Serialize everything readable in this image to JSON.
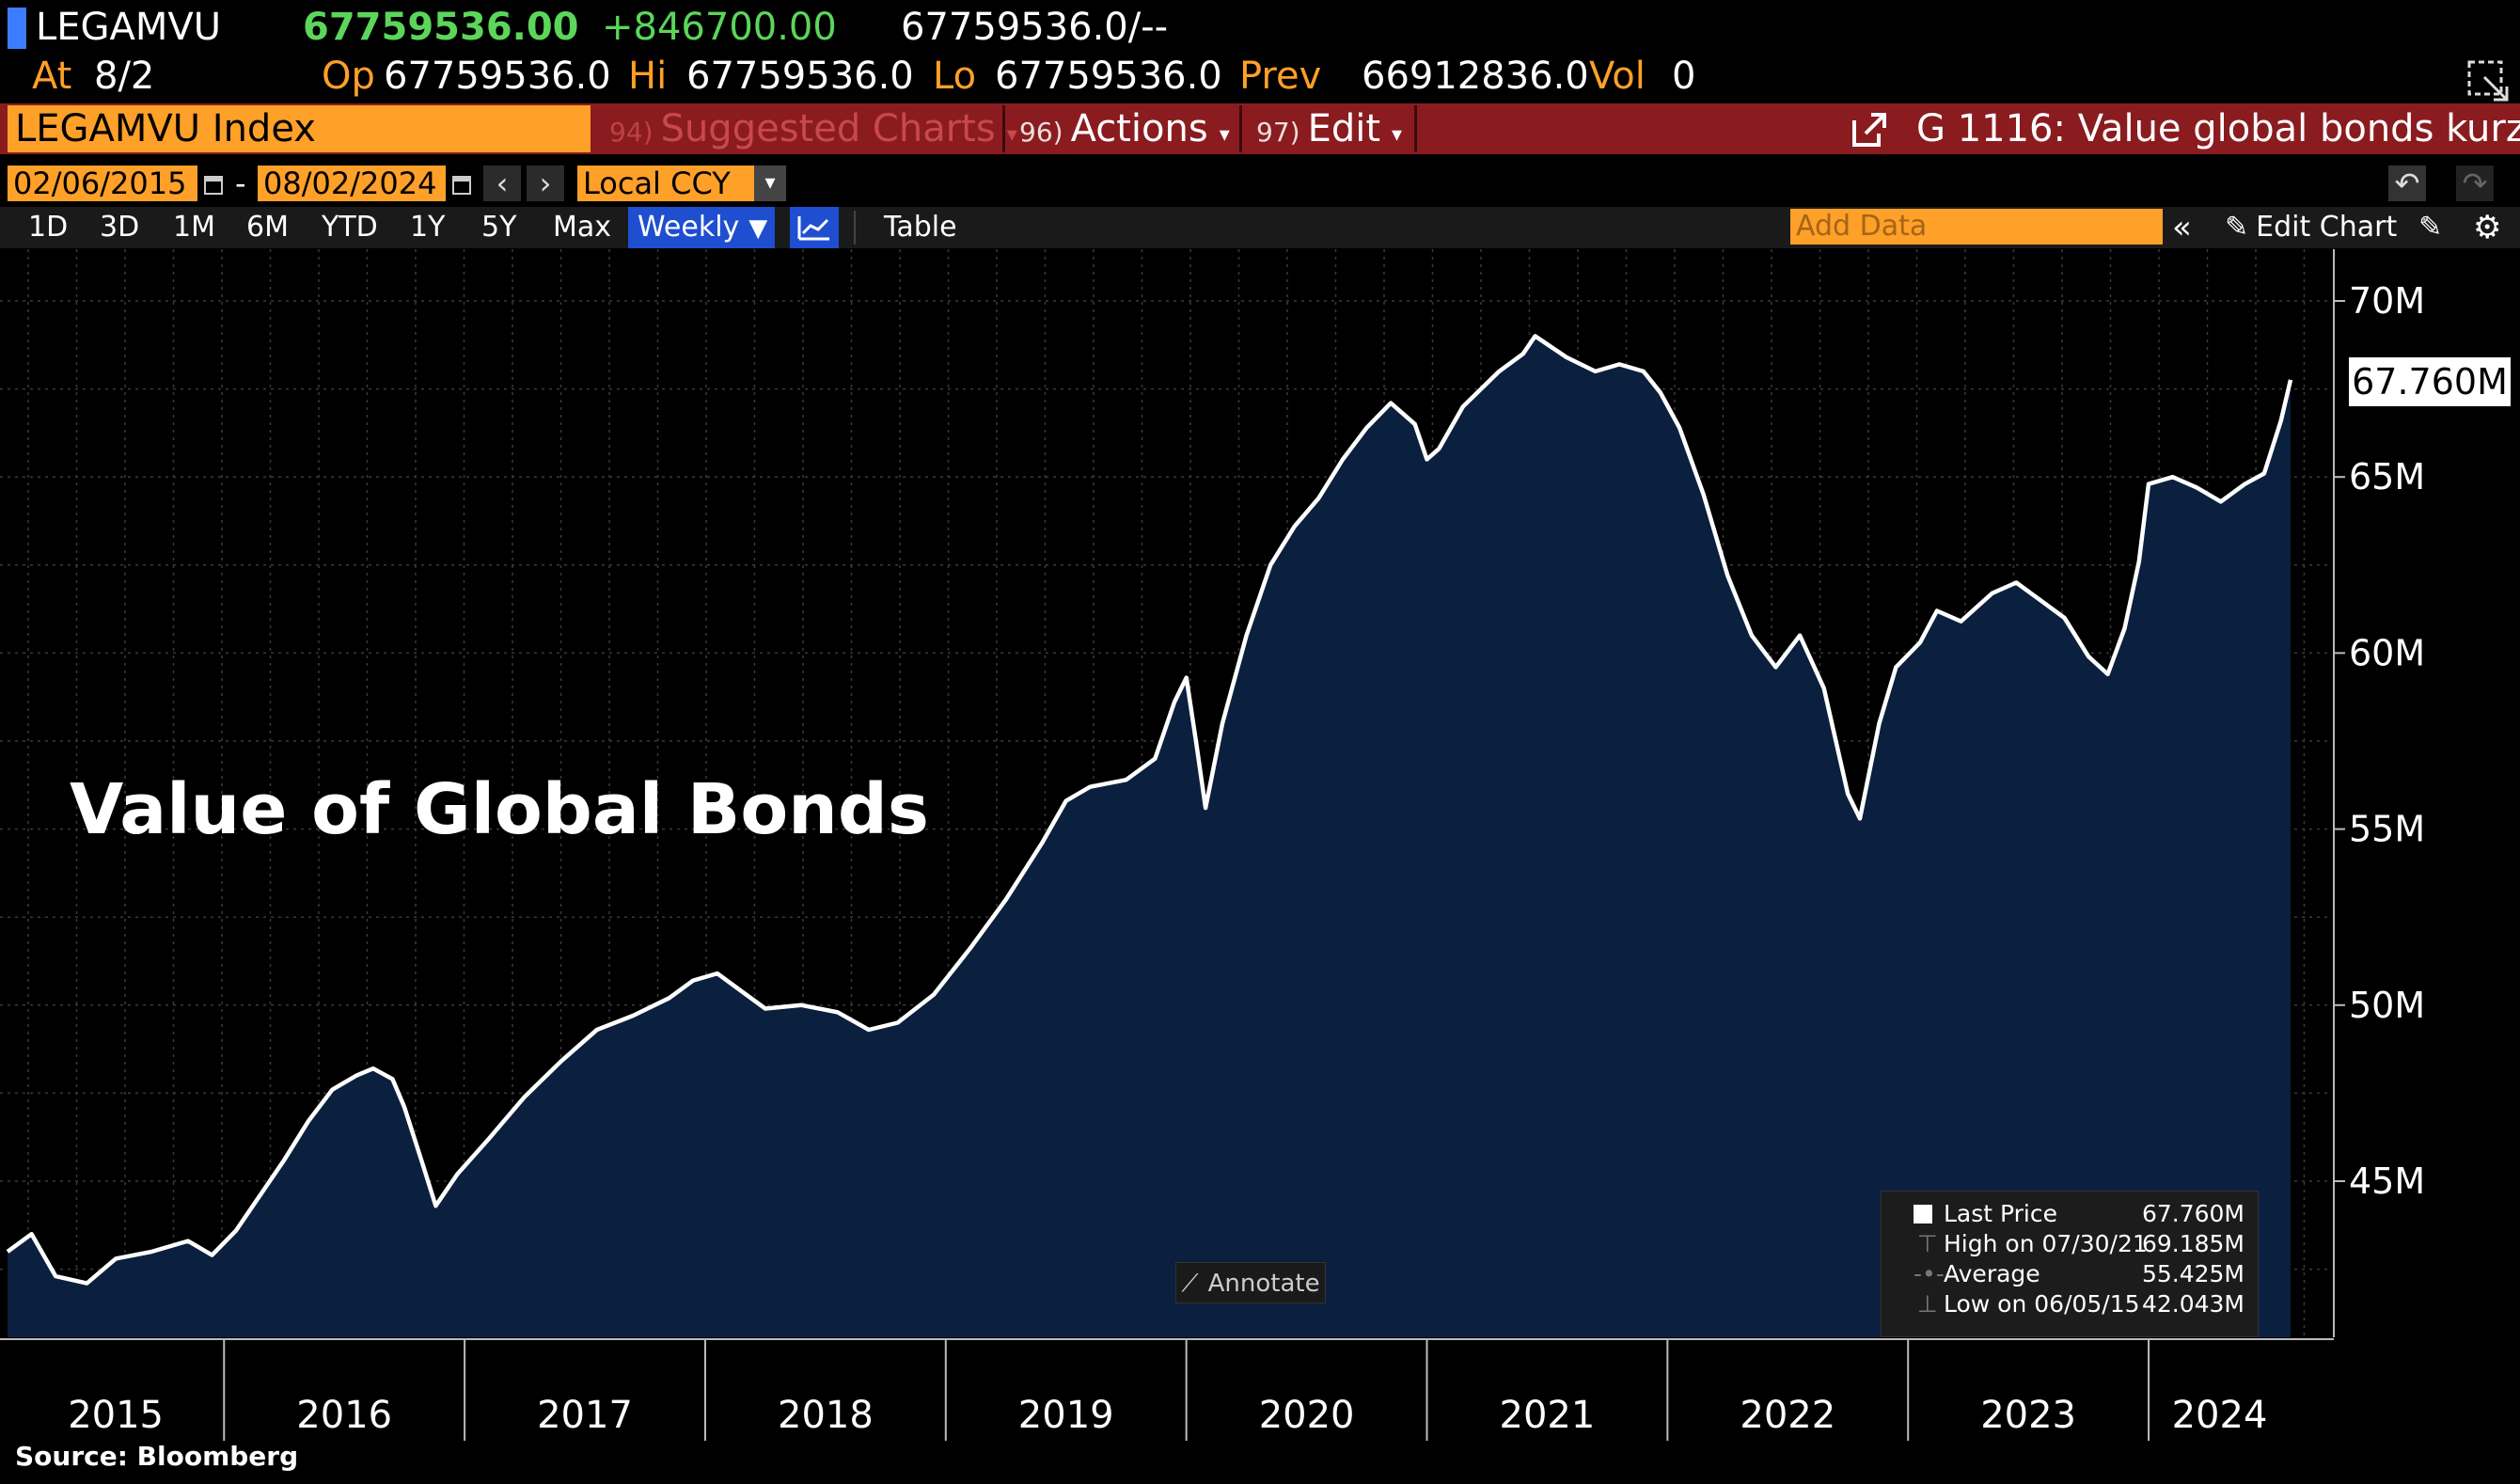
{
  "header": {
    "ticker": "LEGAMVU",
    "last_price": "67759536.00",
    "change": "+846700.00",
    "bid_ask": "67759536.0/--",
    "at_label": "At",
    "at_value": "8/2",
    "open_label": "Op",
    "open_value": "67759536.0",
    "high_label": "Hi",
    "high_value": "67759536.0",
    "low_label": "Lo",
    "low_value": "67759536.0",
    "prev_label": "Prev",
    "prev_value": "66912836.0",
    "vol_label": "Vol",
    "vol_value": "0"
  },
  "menu": {
    "security": "LEGAMVU Index",
    "suggested": {
      "num": "94)",
      "label": "Suggested Charts"
    },
    "actions": {
      "num": "96)",
      "label": "Actions"
    },
    "edit": {
      "num": "97)",
      "label": "Edit"
    },
    "chart_title": "G 1116: Value global bonds kurz"
  },
  "controls": {
    "start_date": "02/06/2015",
    "date_sep": "-",
    "end_date": "08/02/2024",
    "currency": "Local CCY",
    "ranges": [
      "1D",
      "3D",
      "1M",
      "6M",
      "YTD",
      "1Y",
      "5Y",
      "Max"
    ],
    "frequency": "Weekly",
    "table": "Table",
    "add_data_placeholder": "Add Data",
    "edit_chart": "Edit Chart"
  },
  "annotate_label": "Annotate",
  "overlay_title": "Value of Global Bonds",
  "source": "Source:  Bloomberg",
  "last_value_tag": "67.760M",
  "legend": {
    "last": {
      "label": "Last Price",
      "value": "67.760M"
    },
    "high": {
      "label": "High on 07/30/21",
      "value": "69.185M"
    },
    "average": {
      "label": "Average",
      "value": "55.425M"
    },
    "low": {
      "label": "Low on 06/05/15",
      "value": "42.043M"
    }
  },
  "colors": {
    "amber": "#ffa028",
    "green": "#5bd65b",
    "menu_bar": "#8a1c20",
    "area_fill": "#0b1f3e",
    "line": "#ffffff"
  },
  "chart_data": {
    "type": "area",
    "y_unit": "M",
    "ylim": [
      41,
      72
    ],
    "y_ticks": [
      45,
      50,
      55,
      60,
      65,
      70
    ],
    "y_tick_labels": [
      "45M",
      "50M",
      "55M",
      "60M",
      "65M",
      "70M"
    ],
    "year_labels": [
      "2015",
      "2016",
      "2017",
      "2018",
      "2019",
      "2020",
      "2021",
      "2022",
      "2023",
      "2024"
    ],
    "x_start": 2015.1,
    "x_end": 2024.59,
    "series": [
      {
        "points": [
          [
            2015.1,
            43.0
          ],
          [
            2015.2,
            43.5
          ],
          [
            2015.3,
            42.3
          ],
          [
            2015.43,
            42.1
          ],
          [
            2015.55,
            42.8
          ],
          [
            2015.7,
            43.0
          ],
          [
            2015.85,
            43.3
          ],
          [
            2015.95,
            42.9
          ],
          [
            2016.05,
            43.6
          ],
          [
            2016.15,
            44.6
          ],
          [
            2016.25,
            45.6
          ],
          [
            2016.35,
            46.7
          ],
          [
            2016.45,
            47.6
          ],
          [
            2016.55,
            48.0
          ],
          [
            2016.62,
            48.2
          ],
          [
            2016.7,
            47.9
          ],
          [
            2016.75,
            47.1
          ],
          [
            2016.82,
            45.6
          ],
          [
            2016.88,
            44.3
          ],
          [
            2016.97,
            45.2
          ],
          [
            2017.1,
            46.2
          ],
          [
            2017.25,
            47.4
          ],
          [
            2017.4,
            48.4
          ],
          [
            2017.55,
            49.3
          ],
          [
            2017.7,
            49.7
          ],
          [
            2017.85,
            50.2
          ],
          [
            2017.95,
            50.7
          ],
          [
            2018.05,
            50.9
          ],
          [
            2018.15,
            50.4
          ],
          [
            2018.25,
            49.9
          ],
          [
            2018.4,
            50.0
          ],
          [
            2018.55,
            49.8
          ],
          [
            2018.68,
            49.3
          ],
          [
            2018.8,
            49.5
          ],
          [
            2018.95,
            50.3
          ],
          [
            2019.1,
            51.6
          ],
          [
            2019.25,
            53.0
          ],
          [
            2019.4,
            54.6
          ],
          [
            2019.5,
            55.8
          ],
          [
            2019.6,
            56.2
          ],
          [
            2019.75,
            56.4
          ],
          [
            2019.87,
            57.0
          ],
          [
            2019.95,
            58.6
          ],
          [
            2020.0,
            59.3
          ],
          [
            2020.04,
            57.5
          ],
          [
            2020.08,
            55.6
          ],
          [
            2020.15,
            58.0
          ],
          [
            2020.25,
            60.5
          ],
          [
            2020.35,
            62.5
          ],
          [
            2020.45,
            63.6
          ],
          [
            2020.55,
            64.4
          ],
          [
            2020.65,
            65.5
          ],
          [
            2020.75,
            66.4
          ],
          [
            2020.85,
            67.1
          ],
          [
            2020.95,
            66.5
          ],
          [
            2021.0,
            65.5
          ],
          [
            2021.05,
            65.8
          ],
          [
            2021.15,
            67.0
          ],
          [
            2021.3,
            68.0
          ],
          [
            2021.4,
            68.5
          ],
          [
            2021.45,
            69.0
          ],
          [
            2021.58,
            68.4
          ],
          [
            2021.7,
            68.0
          ],
          [
            2021.8,
            68.2
          ],
          [
            2021.9,
            68.0
          ],
          [
            2021.97,
            67.4
          ],
          [
            2022.05,
            66.4
          ],
          [
            2022.15,
            64.5
          ],
          [
            2022.25,
            62.2
          ],
          [
            2022.35,
            60.5
          ],
          [
            2022.45,
            59.6
          ],
          [
            2022.55,
            60.5
          ],
          [
            2022.65,
            59.0
          ],
          [
            2022.75,
            56.0
          ],
          [
            2022.8,
            55.3
          ],
          [
            2022.88,
            58.0
          ],
          [
            2022.95,
            59.6
          ],
          [
            2023.05,
            60.3
          ],
          [
            2023.12,
            61.2
          ],
          [
            2023.22,
            60.9
          ],
          [
            2023.35,
            61.7
          ],
          [
            2023.45,
            62.0
          ],
          [
            2023.55,
            61.5
          ],
          [
            2023.65,
            61.0
          ],
          [
            2023.75,
            59.9
          ],
          [
            2023.83,
            59.4
          ],
          [
            2023.9,
            60.7
          ],
          [
            2023.96,
            62.6
          ],
          [
            2024.0,
            64.8
          ],
          [
            2024.1,
            65.0
          ],
          [
            2024.2,
            64.7
          ],
          [
            2024.3,
            64.3
          ],
          [
            2024.4,
            64.8
          ],
          [
            2024.48,
            65.1
          ],
          [
            2024.55,
            66.6
          ],
          [
            2024.59,
            67.76
          ]
        ]
      }
    ]
  }
}
